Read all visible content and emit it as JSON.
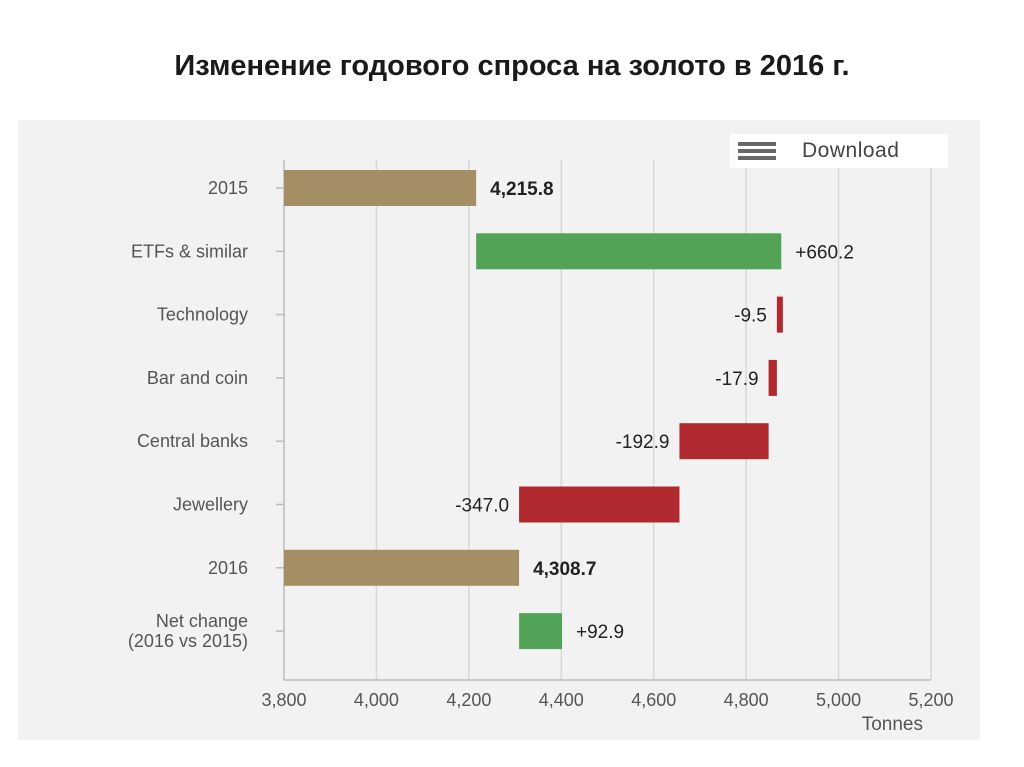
{
  "title": "Изменение годового спроса на золото в 2016 г.",
  "download": {
    "label": "Download",
    "icon": "menu-icon"
  },
  "colors": {
    "total": "#a38f63",
    "positive": "#53a357",
    "negative": "#b0292e",
    "grid": "#d8d8d8",
    "axis": "#bbbbbb"
  },
  "chart_data": {
    "type": "bar",
    "subtype": "waterfall-horizontal",
    "x_axis": {
      "label": "Tonnes",
      "range": [
        3800,
        5200
      ],
      "ticks": [
        3800,
        4000,
        4200,
        4400,
        4600,
        4800,
        5000,
        5200
      ],
      "tick_labels": [
        "3,800",
        "4,000",
        "4,200",
        "4,400",
        "4,600",
        "4,800",
        "5,000",
        "5,200"
      ]
    },
    "grid": true,
    "bars": [
      {
        "category": [
          "2015"
        ],
        "start": 3800,
        "end": 4215.8,
        "value_label": "4,215.8",
        "kind": "total"
      },
      {
        "category": [
          "ETFs & similar"
        ],
        "start": 4215.8,
        "end": 4876.0,
        "value_label": "+660.2",
        "kind": "positive"
      },
      {
        "category": [
          "Technology"
        ],
        "start": 4876.0,
        "end": 4866.5,
        "value_label": "-9.5",
        "kind": "negative"
      },
      {
        "category": [
          "Bar and coin"
        ],
        "start": 4866.5,
        "end": 4848.6,
        "value_label": "-17.9",
        "kind": "negative"
      },
      {
        "category": [
          "Central banks"
        ],
        "start": 4848.6,
        "end": 4655.7,
        "value_label": "-192.9",
        "kind": "negative"
      },
      {
        "category": [
          "Jewellery"
        ],
        "start": 4655.7,
        "end": 4308.7,
        "value_label": "-347.0",
        "kind": "negative"
      },
      {
        "category": [
          "2016"
        ],
        "start": 3800,
        "end": 4308.7,
        "value_label": "4,308.7",
        "kind": "total"
      },
      {
        "category": [
          "Net change",
          "(2016 vs 2015)"
        ],
        "start": 4308.7,
        "end": 4401.6,
        "value_label": "+92.9",
        "kind": "positive"
      }
    ]
  }
}
